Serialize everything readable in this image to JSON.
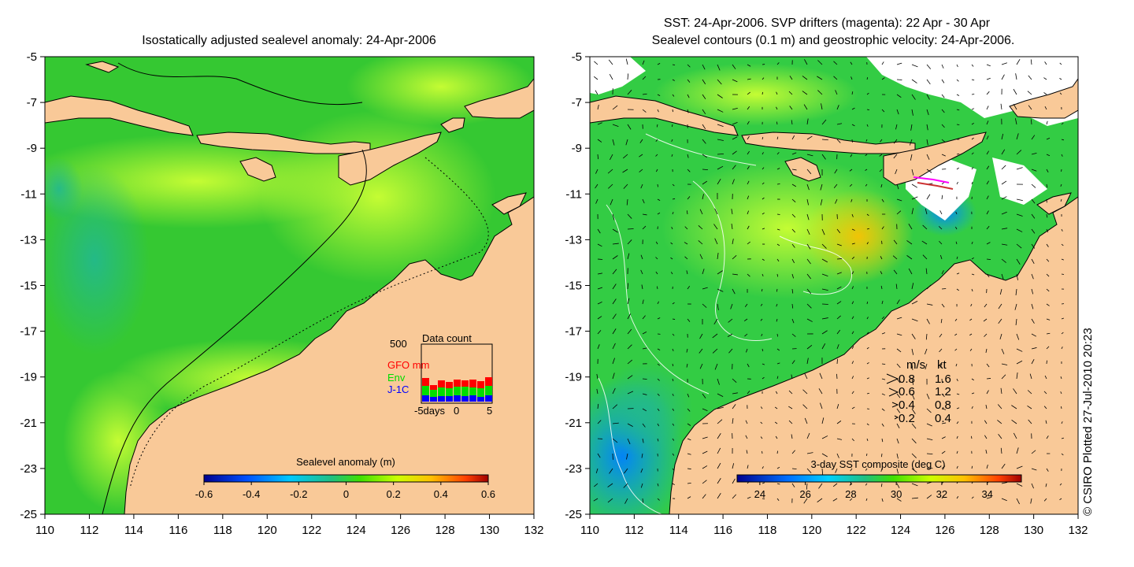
{
  "left_panel": {
    "title": "Isostatically adjusted sealevel anomaly: 24-Apr-2006",
    "colorbar": {
      "title": "Sealevel anomaly (m)",
      "ticks": [
        "-0.6",
        "-0.4",
        "-0.2",
        "0",
        "0.2",
        "0.4",
        "0.6"
      ],
      "range": [
        -0.6,
        0.6
      ]
    },
    "data_count": {
      "title": "Data count",
      "ymax_label": "500",
      "series": [
        {
          "name": "GFO mm",
          "color": "#ff0000"
        },
        {
          "name": "Env",
          "color": "#00dd00"
        },
        {
          "name": "J-1C",
          "color": "#0000ff"
        }
      ],
      "x_left_label": "-5days",
      "x_mid_label": "0",
      "x_right_label": "5"
    }
  },
  "right_panel": {
    "title_line1": "SST: 24-Apr-2006. SVP drifters (magenta): 22 Apr - 30 Apr",
    "title_line2": "Sealevel contours (0.1 m) and geostrophic velocity: 24-Apr-2006.",
    "colorbar": {
      "title": "3-day SST composite (deg C)",
      "ticks": [
        "24",
        "26",
        "28",
        "30",
        "32",
        "34"
      ],
      "range": [
        23,
        35.5
      ]
    },
    "velocity_legend": {
      "header_ms": "m/s",
      "header_kt": "kt",
      "rows": [
        {
          "ms": "0.8",
          "kt": "1.6"
        },
        {
          "ms": "0.6",
          "kt": "1.2"
        },
        {
          "ms": "0.4",
          "kt": "0.8"
        },
        {
          "ms": "0.2",
          "kt": "0.4"
        }
      ]
    }
  },
  "axes": {
    "lon_ticks": [
      "110",
      "112",
      "114",
      "116",
      "118",
      "120",
      "122",
      "124",
      "126",
      "128",
      "130",
      "132"
    ],
    "lat_ticks": [
      "-5",
      "-7",
      "-9",
      "-11",
      "-13",
      "-15",
      "-17",
      "-19",
      "-21",
      "-23",
      "-25"
    ],
    "lon_range": [
      110,
      132
    ],
    "lat_range": [
      -25,
      -5
    ]
  },
  "credit": "© CSIRO Plotted 27-Jul-2010 20:23",
  "colors": {
    "land": "#f9c998",
    "sea_green": "#33cc33",
    "sea_yellow": "#ccff33",
    "sea_cyan": "#22bb88"
  }
}
